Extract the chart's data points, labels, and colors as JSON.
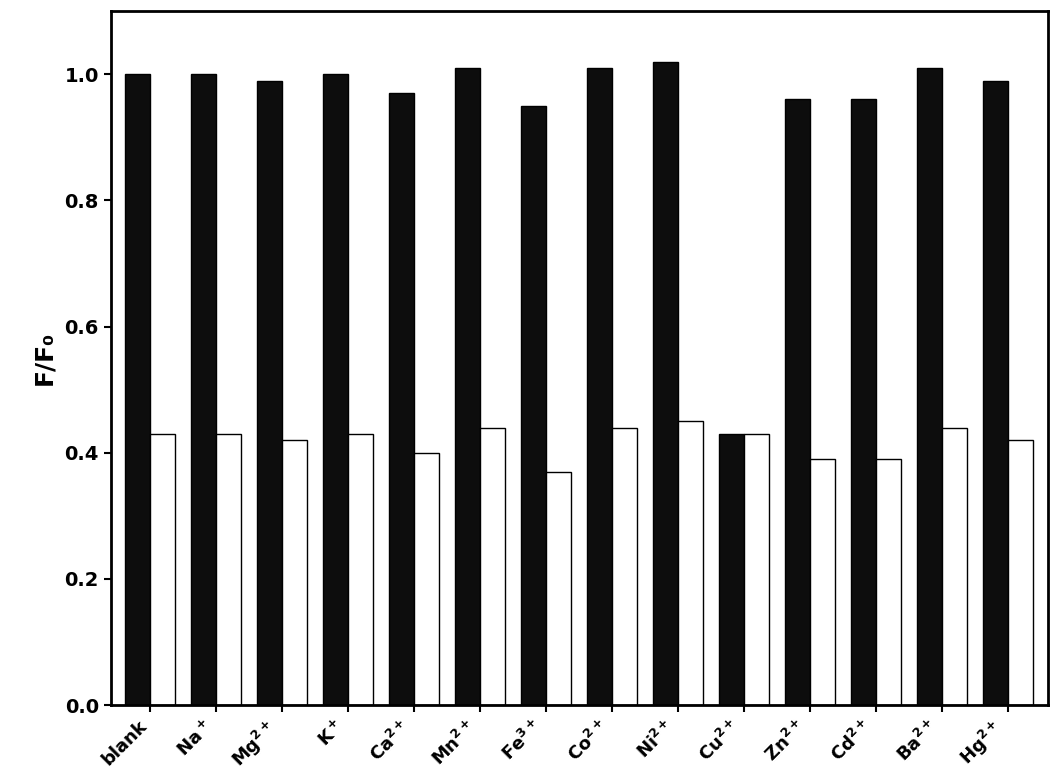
{
  "categories": [
    "blank",
    "Na⁺",
    "Mg²⁺",
    "K⁺",
    "Ca²⁺",
    "Mn²⁺",
    "Fe³⁺",
    "Co²⁺",
    "Ni²⁺",
    "Cu²⁺",
    "Zn²⁺",
    "Cd²⁺",
    "Ba²⁺",
    "Hg²⁺"
  ],
  "black_bars": [
    1.0,
    1.0,
    0.99,
    1.0,
    0.97,
    1.01,
    0.95,
    1.01,
    1.02,
    0.43,
    0.96,
    0.96,
    1.01,
    0.99
  ],
  "white_bars": [
    0.43,
    0.43,
    0.42,
    0.43,
    0.4,
    0.44,
    0.37,
    0.44,
    0.45,
    0.43,
    0.39,
    0.39,
    0.44,
    0.42
  ],
  "black_color": "#0d0d0d",
  "white_color": "#ffffff",
  "bar_edge_color": "#000000",
  "ylabel": "F/F₀",
  "ylim": [
    0.0,
    1.1
  ],
  "yticks": [
    0.0,
    0.2,
    0.4,
    0.6,
    0.8,
    1.0
  ],
  "bar_width": 0.38,
  "figsize": [
    10.59,
    7.83
  ],
  "dpi": 100,
  "tick_fontsize": 14,
  "ylabel_fontsize": 18,
  "xlabel_fontsize": 13
}
